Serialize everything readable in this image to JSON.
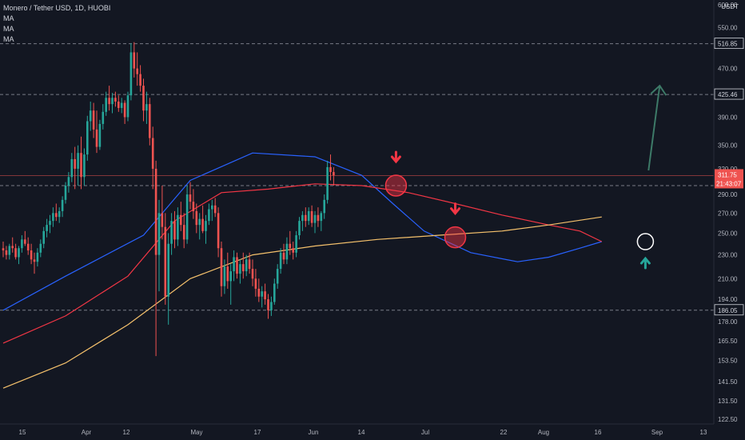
{
  "legend": {
    "title": "Monero / Tether USD, 1D, HUOBI",
    "ma_lines": [
      "MA",
      "MA",
      "MA"
    ]
  },
  "price_axis": {
    "currency": "USDT",
    "ticks": [
      "600.00",
      "550.00",
      "470.00",
      "390.00",
      "350.00",
      "320.00",
      "290.00",
      "270.00",
      "250.00",
      "230.00",
      "210.00",
      "194.00",
      "178.00",
      "165.50",
      "153.50",
      "141.50",
      "131.50",
      "122.50"
    ],
    "markers": [
      {
        "label": "516.85",
        "value": 516.85
      },
      {
        "label": "425.46",
        "value": 425.46
      },
      {
        "label": "186.05",
        "value": 186.05
      }
    ],
    "current_price": {
      "label": "311.75",
      "countdown": "21:43:07",
      "value": 311.75
    }
  },
  "time_axis": {
    "ticks": [
      "15",
      "Apr",
      "12",
      "May",
      "17",
      "Jun",
      "14",
      "Jul",
      "22",
      "Aug",
      "16",
      "Sep",
      "13"
    ]
  },
  "colors": {
    "background": "#131722",
    "up": "#26a69a",
    "down": "#ef5350",
    "ma_fast": "#2962ff",
    "ma_mid": "#f23645",
    "ma_slow": "#f5c16c",
    "marker_line": "#787b86",
    "annotation_up": "#26a69a",
    "annotation_down": "#f23645"
  },
  "chart_data": {
    "type": "candlestick",
    "title": "Monero / Tether USD, 1D, HUOBI",
    "y_scale": "log",
    "ylim": [
      120,
      620
    ],
    "grid": false,
    "horizontal_levels": [
      516.85,
      425.46,
      311.75,
      300,
      186.05
    ],
    "candles_approx": [
      {
        "o": 236,
        "h": 242,
        "l": 228,
        "c": 234
      },
      {
        "o": 234,
        "h": 238,
        "l": 226,
        "c": 230
      },
      {
        "o": 230,
        "h": 240,
        "l": 226,
        "c": 238
      },
      {
        "o": 238,
        "h": 246,
        "l": 232,
        "c": 236
      },
      {
        "o": 236,
        "h": 240,
        "l": 226,
        "c": 228
      },
      {
        "o": 228,
        "h": 238,
        "l": 222,
        "c": 236
      },
      {
        "o": 236,
        "h": 248,
        "l": 232,
        "c": 244
      },
      {
        "o": 244,
        "h": 252,
        "l": 238,
        "c": 240
      },
      {
        "o": 240,
        "h": 246,
        "l": 230,
        "c": 234
      },
      {
        "o": 234,
        "h": 240,
        "l": 222,
        "c": 226
      },
      {
        "o": 226,
        "h": 232,
        "l": 214,
        "c": 224
      },
      {
        "o": 224,
        "h": 236,
        "l": 220,
        "c": 232
      },
      {
        "o": 232,
        "h": 244,
        "l": 228,
        "c": 240
      },
      {
        "o": 240,
        "h": 256,
        "l": 236,
        "c": 252
      },
      {
        "o": 252,
        "h": 264,
        "l": 246,
        "c": 258
      },
      {
        "o": 258,
        "h": 268,
        "l": 250,
        "c": 262
      },
      {
        "o": 262,
        "h": 276,
        "l": 256,
        "c": 270
      },
      {
        "o": 270,
        "h": 280,
        "l": 262,
        "c": 266
      },
      {
        "o": 266,
        "h": 276,
        "l": 260,
        "c": 272
      },
      {
        "o": 272,
        "h": 288,
        "l": 266,
        "c": 284
      },
      {
        "o": 284,
        "h": 304,
        "l": 280,
        "c": 300
      },
      {
        "o": 300,
        "h": 316,
        "l": 292,
        "c": 310
      },
      {
        "o": 310,
        "h": 340,
        "l": 304,
        "c": 332
      },
      {
        "o": 332,
        "h": 348,
        "l": 296,
        "c": 320
      },
      {
        "o": 320,
        "h": 350,
        "l": 300,
        "c": 340
      },
      {
        "o": 340,
        "h": 362,
        "l": 296,
        "c": 310
      },
      {
        "o": 310,
        "h": 346,
        "l": 300,
        "c": 338
      },
      {
        "o": 338,
        "h": 392,
        "l": 330,
        "c": 384
      },
      {
        "o": 384,
        "h": 414,
        "l": 370,
        "c": 400
      },
      {
        "o": 400,
        "h": 412,
        "l": 360,
        "c": 372
      },
      {
        "o": 372,
        "h": 400,
        "l": 340,
        "c": 348
      },
      {
        "o": 348,
        "h": 386,
        "l": 344,
        "c": 380
      },
      {
        "o": 380,
        "h": 410,
        "l": 372,
        "c": 398
      },
      {
        "o": 398,
        "h": 430,
        "l": 392,
        "c": 420
      },
      {
        "o": 420,
        "h": 440,
        "l": 400,
        "c": 410
      },
      {
        "o": 410,
        "h": 428,
        "l": 396,
        "c": 420
      },
      {
        "o": 420,
        "h": 430,
        "l": 406,
        "c": 414
      },
      {
        "o": 414,
        "h": 424,
        "l": 398,
        "c": 404
      },
      {
        "o": 404,
        "h": 420,
        "l": 396,
        "c": 412
      },
      {
        "o": 412,
        "h": 416,
        "l": 380,
        "c": 390
      },
      {
        "o": 390,
        "h": 430,
        "l": 384,
        "c": 424
      },
      {
        "o": 424,
        "h": 518,
        "l": 416,
        "c": 500
      },
      {
        "o": 500,
        "h": 520,
        "l": 454,
        "c": 470
      },
      {
        "o": 470,
        "h": 500,
        "l": 440,
        "c": 460
      },
      {
        "o": 460,
        "h": 476,
        "l": 430,
        "c": 440
      },
      {
        "o": 440,
        "h": 452,
        "l": 384,
        "c": 400
      },
      {
        "o": 400,
        "h": 430,
        "l": 380,
        "c": 410
      },
      {
        "o": 410,
        "h": 420,
        "l": 350,
        "c": 360
      },
      {
        "o": 360,
        "h": 376,
        "l": 296,
        "c": 320
      },
      {
        "o": 320,
        "h": 330,
        "l": 156,
        "c": 230
      },
      {
        "o": 230,
        "h": 284,
        "l": 200,
        "c": 270
      },
      {
        "o": 270,
        "h": 300,
        "l": 244,
        "c": 256
      },
      {
        "o": 256,
        "h": 270,
        "l": 190,
        "c": 196
      },
      {
        "o": 196,
        "h": 250,
        "l": 176,
        "c": 240
      },
      {
        "o": 240,
        "h": 270,
        "l": 230,
        "c": 262
      },
      {
        "o": 262,
        "h": 272,
        "l": 236,
        "c": 244
      },
      {
        "o": 244,
        "h": 276,
        "l": 238,
        "c": 268
      },
      {
        "o": 268,
        "h": 282,
        "l": 252,
        "c": 258
      },
      {
        "o": 258,
        "h": 270,
        "l": 236,
        "c": 244
      },
      {
        "o": 244,
        "h": 300,
        "l": 240,
        "c": 290
      },
      {
        "o": 290,
        "h": 304,
        "l": 274,
        "c": 282
      },
      {
        "o": 282,
        "h": 296,
        "l": 264,
        "c": 272
      },
      {
        "o": 272,
        "h": 280,
        "l": 250,
        "c": 258
      },
      {
        "o": 258,
        "h": 270,
        "l": 244,
        "c": 264
      },
      {
        "o": 264,
        "h": 278,
        "l": 250,
        "c": 252
      },
      {
        "o": 252,
        "h": 268,
        "l": 240,
        "c": 262
      },
      {
        "o": 262,
        "h": 280,
        "l": 258,
        "c": 274
      },
      {
        "o": 274,
        "h": 284,
        "l": 262,
        "c": 278
      },
      {
        "o": 278,
        "h": 286,
        "l": 266,
        "c": 270
      },
      {
        "o": 270,
        "h": 276,
        "l": 228,
        "c": 236
      },
      {
        "o": 236,
        "h": 242,
        "l": 196,
        "c": 204
      },
      {
        "o": 204,
        "h": 226,
        "l": 198,
        "c": 220
      },
      {
        "o": 220,
        "h": 232,
        "l": 202,
        "c": 208
      },
      {
        "o": 208,
        "h": 222,
        "l": 190,
        "c": 216
      },
      {
        "o": 216,
        "h": 234,
        "l": 208,
        "c": 228
      },
      {
        "o": 228,
        "h": 232,
        "l": 210,
        "c": 214
      },
      {
        "o": 214,
        "h": 226,
        "l": 206,
        "c": 222
      },
      {
        "o": 222,
        "h": 232,
        "l": 210,
        "c": 216
      },
      {
        "o": 216,
        "h": 230,
        "l": 212,
        "c": 226
      },
      {
        "o": 226,
        "h": 232,
        "l": 214,
        "c": 218
      },
      {
        "o": 218,
        "h": 226,
        "l": 204,
        "c": 210
      },
      {
        "o": 210,
        "h": 218,
        "l": 196,
        "c": 202
      },
      {
        "o": 202,
        "h": 210,
        "l": 192,
        "c": 196
      },
      {
        "o": 196,
        "h": 204,
        "l": 188,
        "c": 200
      },
      {
        "o": 200,
        "h": 206,
        "l": 190,
        "c": 194
      },
      {
        "o": 194,
        "h": 198,
        "l": 180,
        "c": 186
      },
      {
        "o": 186,
        "h": 196,
        "l": 182,
        "c": 192
      },
      {
        "o": 192,
        "h": 210,
        "l": 190,
        "c": 206
      },
      {
        "o": 206,
        "h": 222,
        "l": 202,
        "c": 218
      },
      {
        "o": 218,
        "h": 236,
        "l": 214,
        "c": 232
      },
      {
        "o": 232,
        "h": 240,
        "l": 222,
        "c": 226
      },
      {
        "o": 226,
        "h": 246,
        "l": 222,
        "c": 240
      },
      {
        "o": 240,
        "h": 252,
        "l": 230,
        "c": 236
      },
      {
        "o": 236,
        "h": 242,
        "l": 226,
        "c": 232
      },
      {
        "o": 232,
        "h": 252,
        "l": 228,
        "c": 248
      },
      {
        "o": 248,
        "h": 266,
        "l": 244,
        "c": 262
      },
      {
        "o": 262,
        "h": 272,
        "l": 252,
        "c": 268
      },
      {
        "o": 268,
        "h": 276,
        "l": 256,
        "c": 262
      },
      {
        "o": 262,
        "h": 276,
        "l": 258,
        "c": 272
      },
      {
        "o": 272,
        "h": 278,
        "l": 256,
        "c": 260
      },
      {
        "o": 260,
        "h": 272,
        "l": 250,
        "c": 268
      },
      {
        "o": 268,
        "h": 276,
        "l": 256,
        "c": 262
      },
      {
        "o": 262,
        "h": 272,
        "l": 252,
        "c": 270
      },
      {
        "o": 270,
        "h": 290,
        "l": 264,
        "c": 284
      },
      {
        "o": 284,
        "h": 330,
        "l": 280,
        "c": 322
      },
      {
        "o": 322,
        "h": 338,
        "l": 306,
        "c": 316
      },
      {
        "o": 316,
        "h": 322,
        "l": 300,
        "c": 312
      }
    ],
    "moving_averages": [
      {
        "name": "MA",
        "color": "#2962ff",
        "points": [
          [
            0,
            186
          ],
          [
            20,
            212
          ],
          [
            45,
            248
          ],
          [
            60,
            306
          ],
          [
            80,
            340
          ],
          [
            100,
            335
          ],
          [
            115,
            312
          ],
          [
            125,
            280
          ],
          [
            135,
            252
          ],
          [
            150,
            232
          ],
          [
            165,
            224
          ],
          [
            175,
            228
          ],
          [
            185,
            236
          ],
          [
            192,
            242
          ]
        ]
      },
      {
        "name": "MA",
        "color": "#f23645",
        "points": [
          [
            0,
            164
          ],
          [
            20,
            182
          ],
          [
            40,
            212
          ],
          [
            55,
            262
          ],
          [
            70,
            292
          ],
          [
            85,
            296
          ],
          [
            100,
            302
          ],
          [
            115,
            300
          ],
          [
            130,
            292
          ],
          [
            145,
            280
          ],
          [
            160,
            268
          ],
          [
            175,
            258
          ],
          [
            185,
            252
          ],
          [
            192,
            242
          ]
        ]
      },
      {
        "name": "MA",
        "color": "#f5c16c",
        "points": [
          [
            0,
            138
          ],
          [
            20,
            152
          ],
          [
            40,
            176
          ],
          [
            60,
            210
          ],
          [
            80,
            230
          ],
          [
            100,
            238
          ],
          [
            120,
            244
          ],
          [
            140,
            248
          ],
          [
            160,
            252
          ],
          [
            175,
            258
          ],
          [
            192,
            266
          ]
        ]
      }
    ]
  },
  "annotations": {
    "down_arrows": 2,
    "up_arrows": 2,
    "circles": 3
  }
}
